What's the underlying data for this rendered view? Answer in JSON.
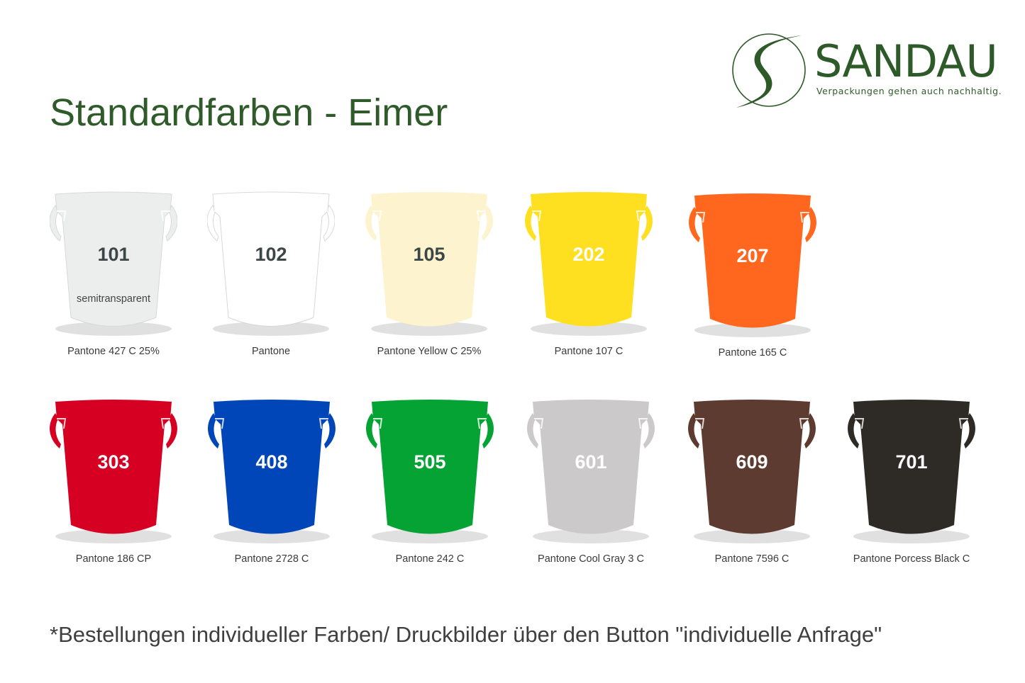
{
  "title": "Standardfarben - Eimer",
  "logo": {
    "name": "SANDAU",
    "tagline": "Verpackungen gehen auch nachhaltig.",
    "color": "#2e5a2a"
  },
  "buckets": [
    {
      "code": "101",
      "note": "semitransparent",
      "pantone": "Pantone 427 C 25%",
      "color": "#eceeee",
      "text_color": "#3d4646"
    },
    {
      "code": "102",
      "pantone": "Pantone",
      "color": "#ffffff",
      "text_color": "#3d4646"
    },
    {
      "code": "105",
      "pantone": "Pantone Yellow C 25%",
      "color": "#fef3cf",
      "text_color": "#3d4646"
    },
    {
      "code": "202",
      "pantone": "Pantone 107 C",
      "color": "#fee020",
      "text_color": "#ffffff"
    },
    {
      "code": "207",
      "pantone": "Pantone 165 C",
      "color": "#fe671d",
      "text_color": "#ffffff"
    },
    {
      "code": "303",
      "pantone": "Pantone 186 CP",
      "color": "#d60022",
      "text_color": "#ffffff"
    },
    {
      "code": "408",
      "pantone": "Pantone 2728 C",
      "color": "#0046b9",
      "text_color": "#ffffff"
    },
    {
      "code": "505",
      "pantone": "Pantone 242 C",
      "color": "#05a334",
      "text_color": "#ffffff"
    },
    {
      "code": "601",
      "pantone": "Pantone Cool Gray 3 C",
      "color": "#cbc9c9",
      "text_color": "#ffffff"
    },
    {
      "code": "609",
      "pantone": "Pantone 7596 C",
      "color": "#5d3b30",
      "text_color": "#ffffff"
    },
    {
      "code": "701",
      "pantone": "Pantone Porcess Black C",
      "color": "#2e2a25",
      "text_color": "#ffffff"
    }
  ],
  "footer": "*Bestellungen individueller Farben/ Druckbilder über den Button \"individuelle Anfrage\""
}
